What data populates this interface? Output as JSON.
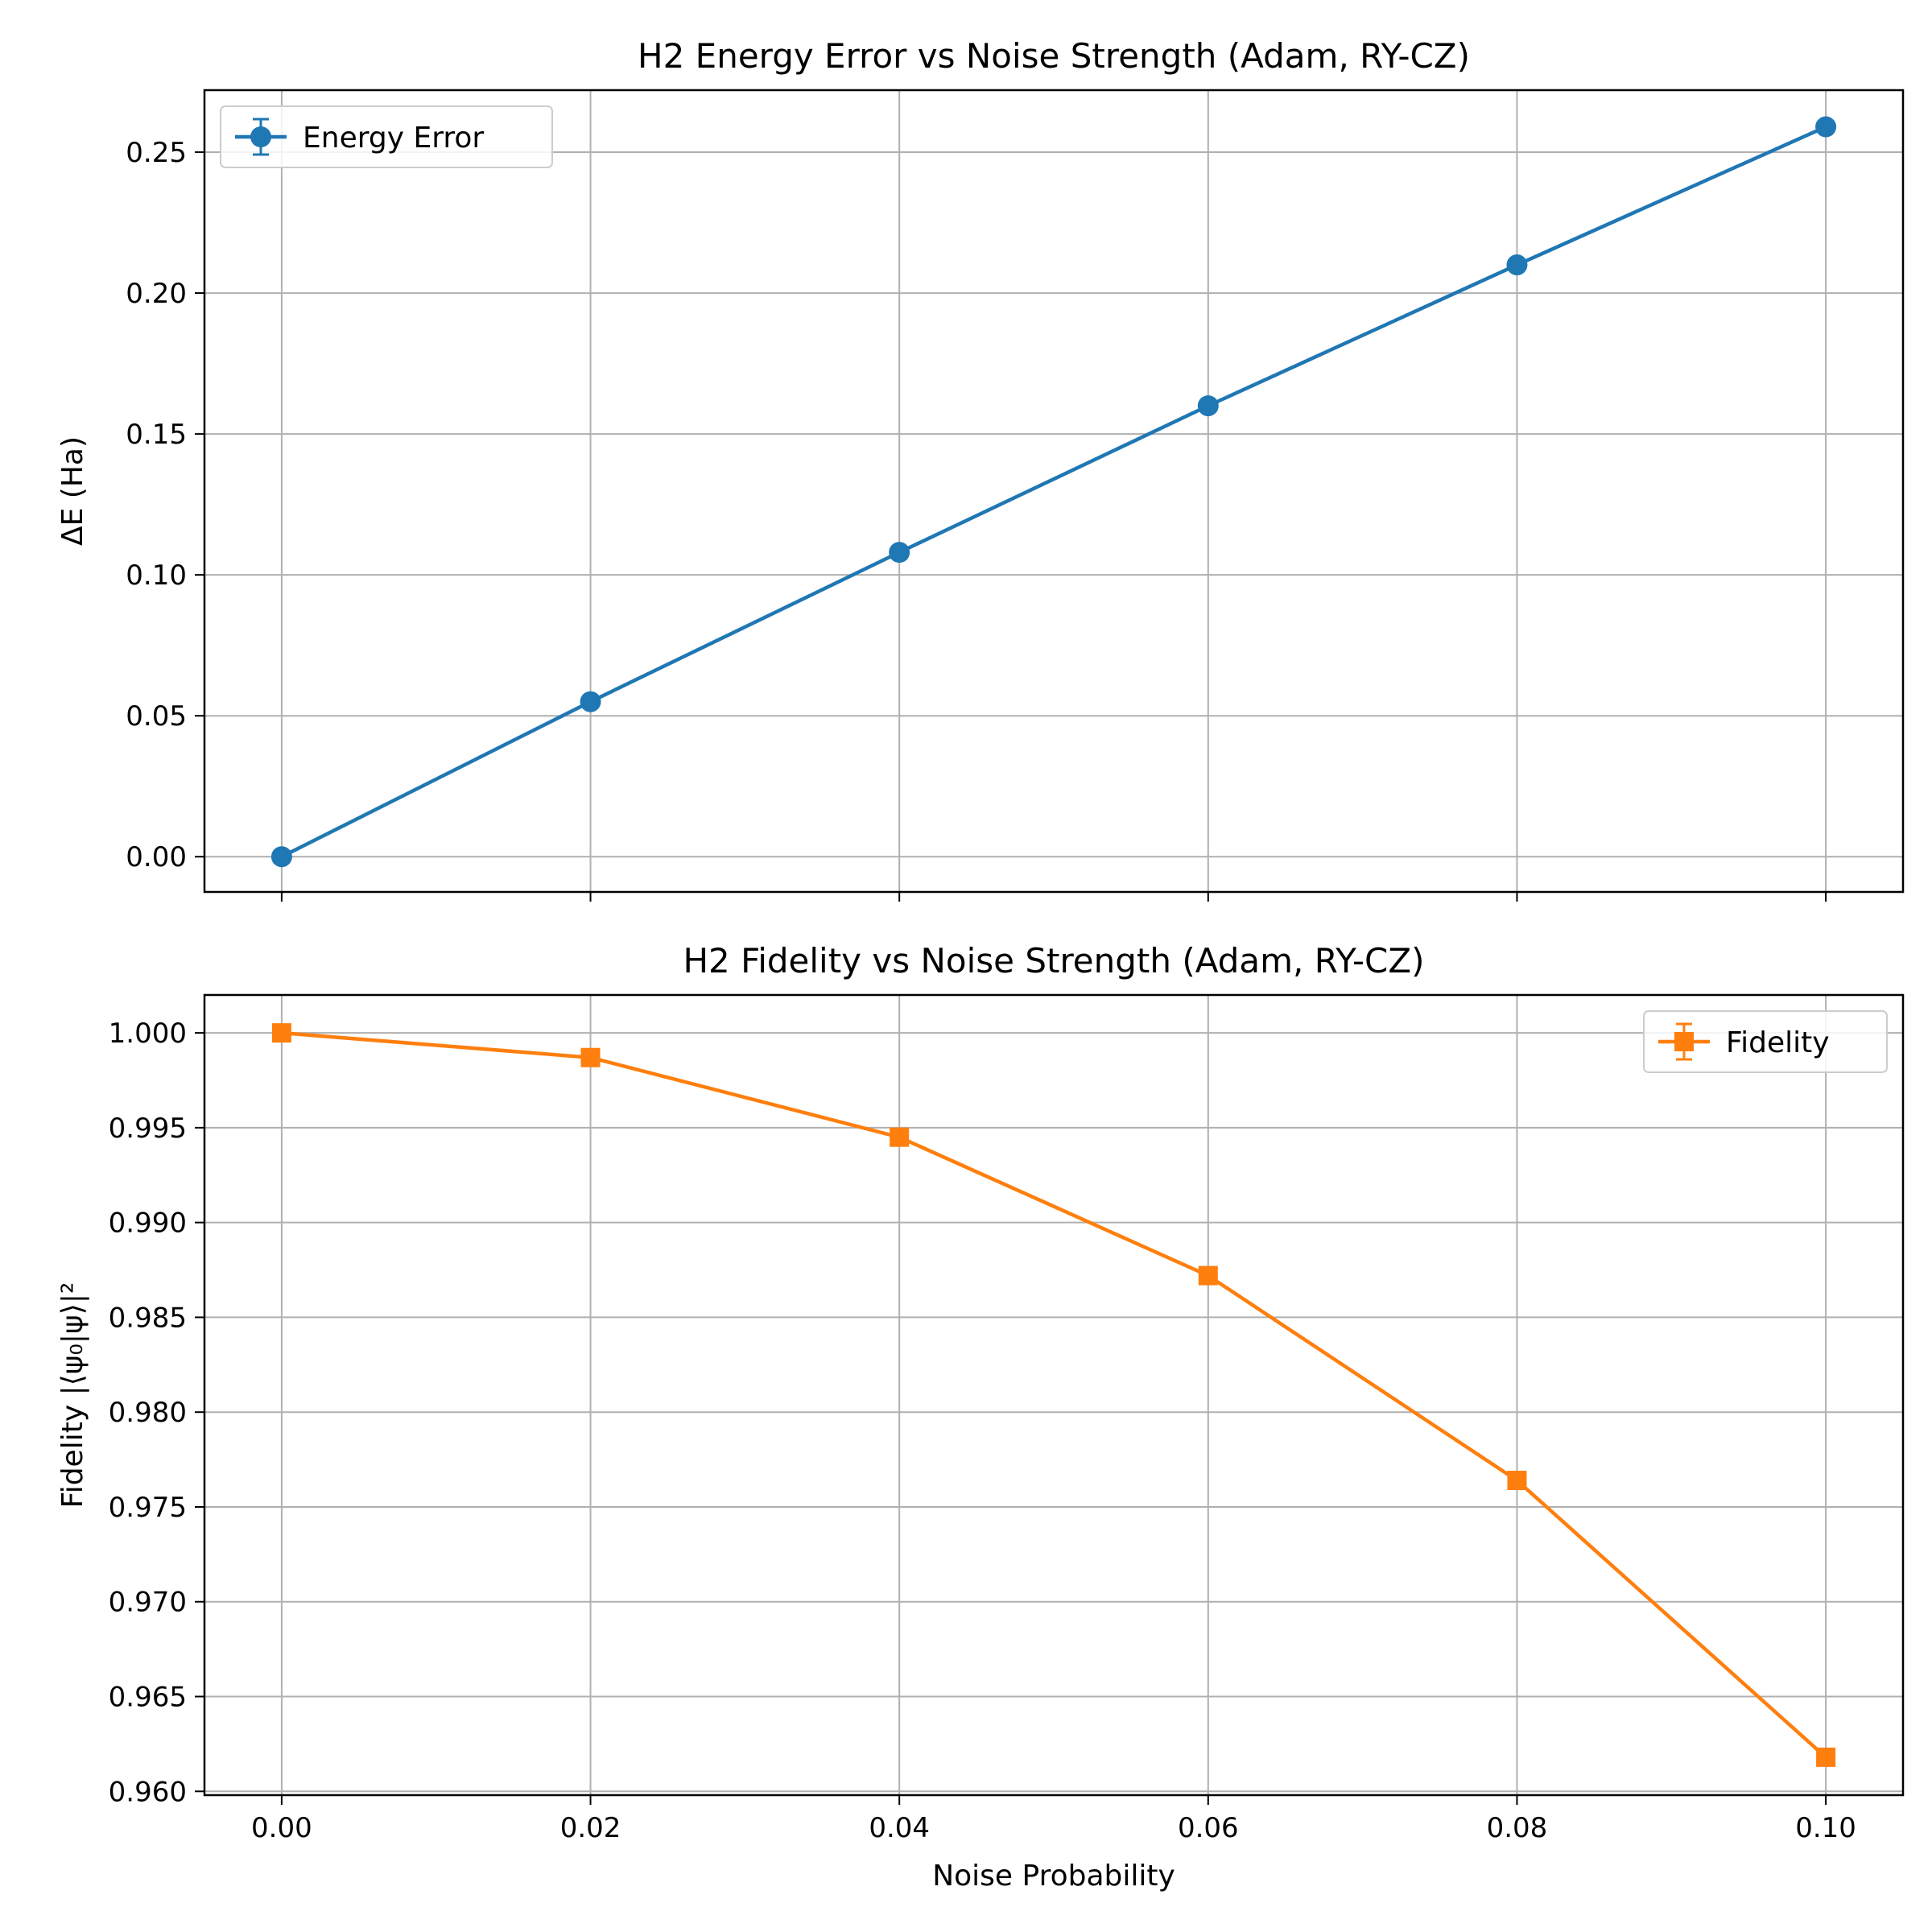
{
  "chart_data": [
    {
      "type": "line",
      "title": "H2 Energy Error vs Noise Strength (Adam, RY-CZ)",
      "xlabel": "",
      "ylabel": "ΔE (Ha)",
      "xlim": [
        -0.005,
        0.105
      ],
      "ylim": [
        -0.0125,
        0.272
      ],
      "x_ticks": [
        0.0,
        0.02,
        0.04,
        0.06,
        0.08,
        0.1
      ],
      "x_tick_labels": [],
      "y_ticks": [
        0.0,
        0.05,
        0.1,
        0.15,
        0.2,
        0.25
      ],
      "y_tick_labels": [
        "0.00",
        "0.05",
        "0.10",
        "0.15",
        "0.20",
        "0.25"
      ],
      "grid": true,
      "legend": {
        "position": "upper-left"
      },
      "series": [
        {
          "name": "Energy Error",
          "color": "#1f77b4",
          "marker": "circle",
          "error_bars": true,
          "x": [
            0.0,
            0.02,
            0.04,
            0.06,
            0.08,
            0.1
          ],
          "y": [
            0.0,
            0.055,
            0.108,
            0.16,
            0.21,
            0.259
          ]
        }
      ]
    },
    {
      "type": "line",
      "title": "H2 Fidelity vs Noise Strength (Adam, RY-CZ)",
      "xlabel": "Noise Probability",
      "ylabel": "Fidelity |⟨ψ₀|ψ⟩|²",
      "xlim": [
        -0.005,
        0.105
      ],
      "ylim": [
        0.9598,
        1.002
      ],
      "x_ticks": [
        0.0,
        0.02,
        0.04,
        0.06,
        0.08,
        0.1
      ],
      "x_tick_labels": [
        "0.00",
        "0.02",
        "0.04",
        "0.06",
        "0.08",
        "0.10"
      ],
      "y_ticks": [
        0.96,
        0.965,
        0.97,
        0.975,
        0.98,
        0.985,
        0.99,
        0.995,
        1.0
      ],
      "y_tick_labels": [
        "0.960",
        "0.965",
        "0.970",
        "0.975",
        "0.980",
        "0.985",
        "0.990",
        "0.995",
        "1.000"
      ],
      "grid": true,
      "legend": {
        "position": "upper-right"
      },
      "series": [
        {
          "name": "Fidelity",
          "color": "#ff7f0e",
          "marker": "square",
          "error_bars": true,
          "x": [
            0.0,
            0.02,
            0.04,
            0.06,
            0.08,
            0.1
          ],
          "y": [
            1.0,
            0.9987,
            0.9945,
            0.9872,
            0.9764,
            0.9618
          ]
        }
      ]
    }
  ]
}
